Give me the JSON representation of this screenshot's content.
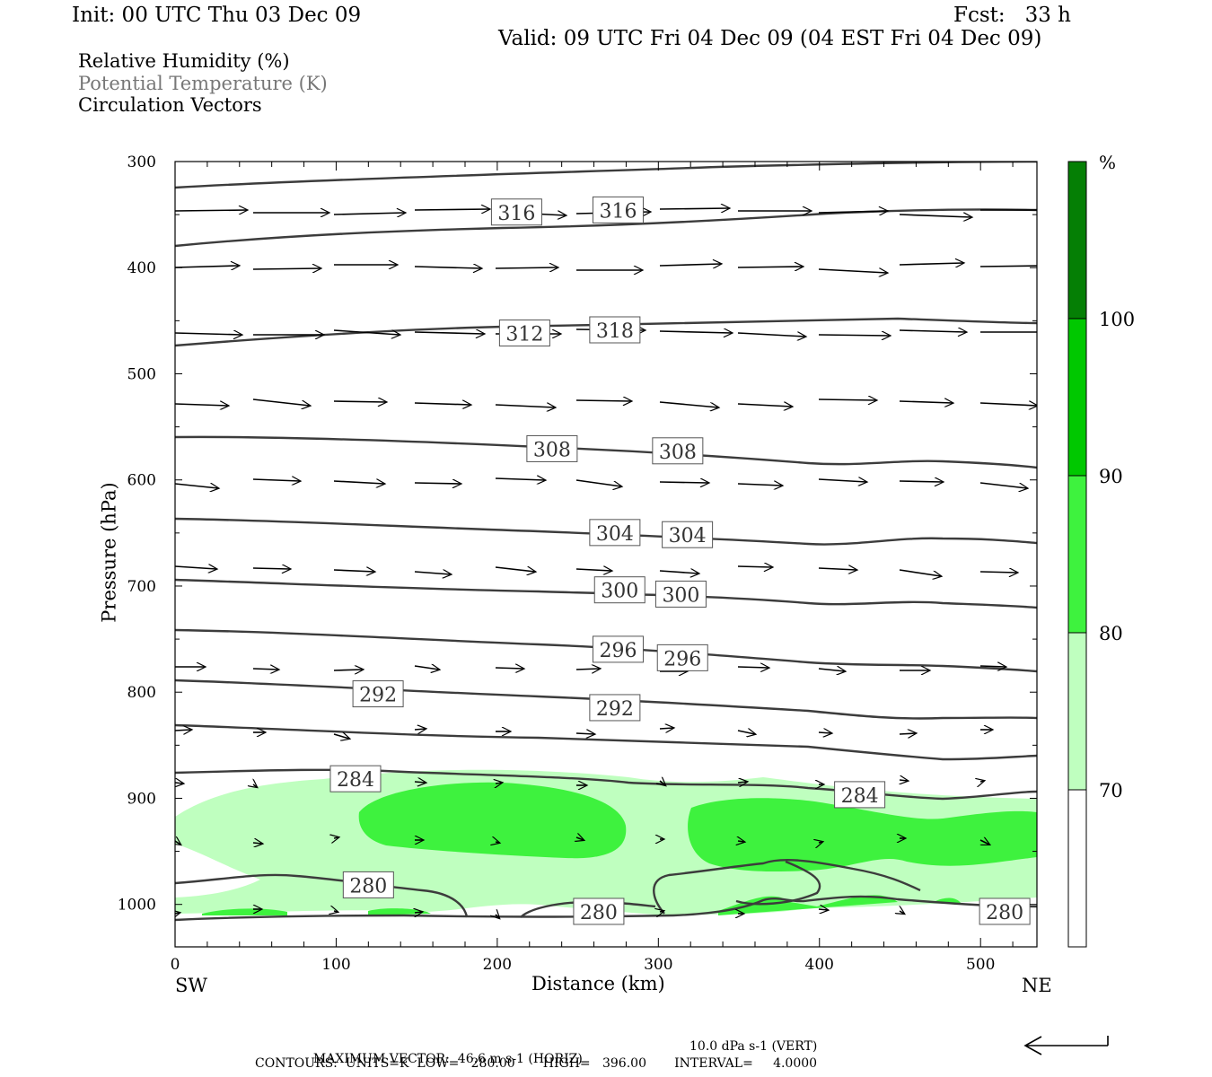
{
  "header": {
    "init": "Init: 00 UTC Thu 03 Dec 09",
    "fcst": "Fcst:   33 h",
    "valid": "Valid: 09 UTC Fri 04 Dec 09 (04 EST Fri 04 Dec 09)"
  },
  "fields": {
    "rh": "Relative Humidity (%)",
    "theta": "Potential Temperature (K)",
    "vectors": "Circulation Vectors"
  },
  "colors": {
    "rh_70": "#bfffbf",
    "rh_80": "#3ef23e",
    "rh_90": "#00c800",
    "rh_100": "#057f05",
    "contour": "#3c3c3c",
    "vector": "#000000"
  },
  "chart_data": {
    "type": "cross-section",
    "xlabel": "Distance (km)",
    "ylabel": "Pressure (hPa)",
    "xlim": [
      0,
      535
    ],
    "ylim": [
      1040,
      300
    ],
    "x_ticks": [
      0,
      100,
      200,
      300,
      400,
      500
    ],
    "y_ticks": [
      300,
      400,
      500,
      600,
      700,
      800,
      900,
      1000
    ],
    "endpoints": {
      "left": "SW",
      "right": "NE"
    },
    "colorbar": {
      "unit": "%",
      "levels": [
        70,
        80,
        90,
        100
      ]
    },
    "contour_labels": [
      {
        "value": "316",
        "x": 212,
        "p": 348
      },
      {
        "value": "316",
        "x": 275,
        "p": 346
      },
      {
        "value": "312",
        "x": 217,
        "p": 462
      },
      {
        "value": "318",
        "x": 273,
        "p": 459
      },
      {
        "value": "308",
        "x": 234,
        "p": 571
      },
      {
        "value": "308",
        "x": 312,
        "p": 573
      },
      {
        "value": "304",
        "x": 273,
        "p": 650
      },
      {
        "value": "304",
        "x": 318,
        "p": 652
      },
      {
        "value": "300",
        "x": 276,
        "p": 704
      },
      {
        "value": "300",
        "x": 314,
        "p": 708
      },
      {
        "value": "296",
        "x": 275,
        "p": 760
      },
      {
        "value": "296",
        "x": 315,
        "p": 768
      },
      {
        "value": "292",
        "x": 126,
        "p": 802
      },
      {
        "value": "292",
        "x": 273,
        "p": 815
      },
      {
        "value": "284",
        "x": 112,
        "p": 882
      },
      {
        "value": "284",
        "x": 425,
        "p": 897
      },
      {
        "value": "280",
        "x": 120,
        "p": 982
      },
      {
        "value": "280",
        "x": 263,
        "p": 1007
      },
      {
        "value": "280",
        "x": 515,
        "p": 1007
      }
    ],
    "footer": {
      "max_vector_label": "MAXIMUM VECTOR:",
      "horiz": "46.6 m s-1 (HORIZ)",
      "vert": "10.0 dPa s-1 (VERT)",
      "contours": "CONTOURS:  UNITS=K  LOW=   280.00       HIGH=   396.00       INTERVAL=     4.0000"
    }
  }
}
